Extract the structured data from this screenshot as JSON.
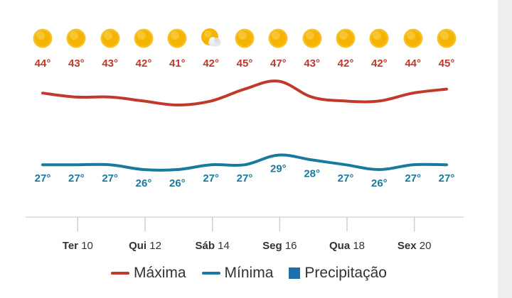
{
  "colors": {
    "max": "#c0392b",
    "min": "#1a7a9e",
    "precip": "#1e6fa8",
    "sun": "#f4b400"
  },
  "legend": {
    "max_label": "Máxima",
    "min_label": "Mínima",
    "precip_label": "Precipitação"
  },
  "chart_data": {
    "type": "line",
    "days": 13,
    "icons": [
      "sun-icon",
      "sun-icon",
      "sun-icon",
      "sun-icon",
      "sun-icon",
      "partly-cloudy-icon",
      "sun-icon",
      "sun-icon",
      "sun-icon",
      "sun-icon",
      "sun-icon",
      "sun-icon",
      "sun-icon"
    ],
    "series": [
      {
        "name": "Máxima",
        "values": [
          44,
          43,
          43,
          42,
          41,
          42,
          45,
          47,
          43,
          42,
          42,
          44,
          45
        ]
      },
      {
        "name": "Mínima",
        "values": [
          27,
          27,
          27,
          26,
          26,
          27,
          27,
          29,
          28,
          27,
          26,
          27,
          27
        ]
      }
    ],
    "value_labels_max": [
      "44°",
      "43°",
      "43°",
      "42°",
      "41°",
      "42°",
      "45°",
      "47°",
      "43°",
      "42°",
      "42°",
      "44°",
      "45°"
    ],
    "value_labels_min": [
      "27°",
      "27°",
      "27°",
      "26°",
      "26°",
      "27°",
      "27°",
      "29°",
      "28°",
      "27°",
      "26°",
      "27°",
      "27°"
    ],
    "x_ticks": [
      {
        "index": 1,
        "day": "Ter",
        "num": "10"
      },
      {
        "index": 3,
        "day": "Qui",
        "num": "12"
      },
      {
        "index": 5,
        "day": "Sáb",
        "num": "14"
      },
      {
        "index": 7,
        "day": "Seg",
        "num": "16"
      },
      {
        "index": 9,
        "day": "Qua",
        "num": "18"
      },
      {
        "index": 11,
        "day": "Sex",
        "num": "20"
      }
    ]
  }
}
